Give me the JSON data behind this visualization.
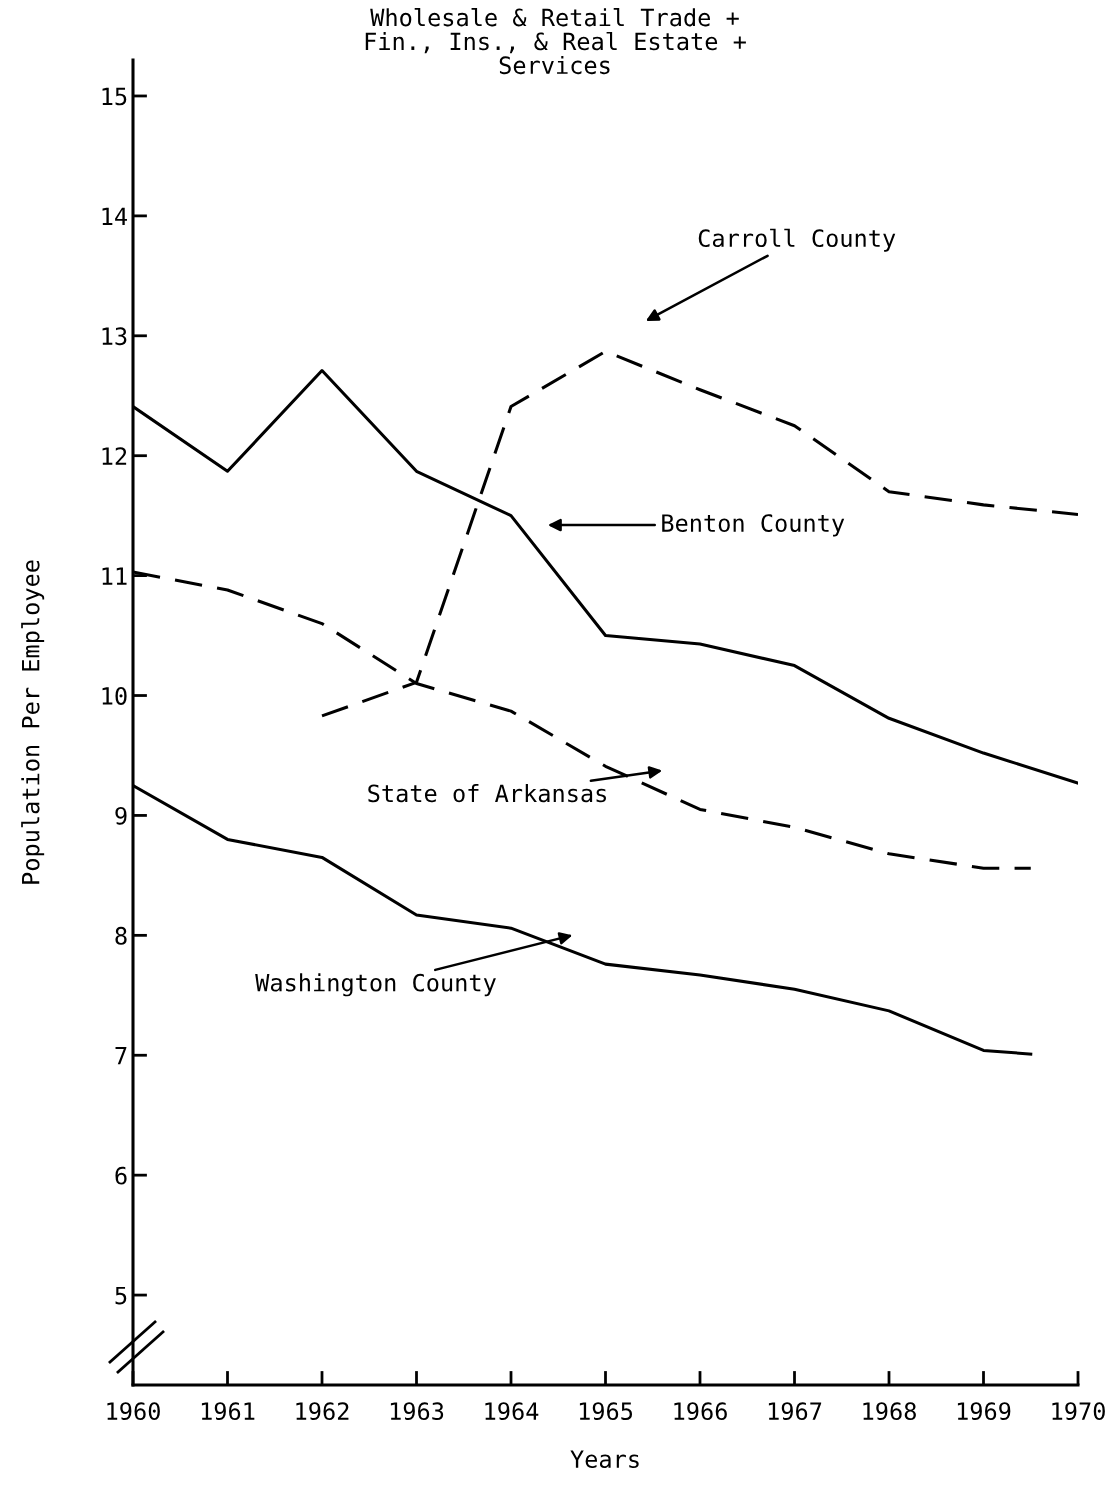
{
  "chart_data": {
    "type": "line",
    "title": "Wholesale & Retail Trade +\nFin., Ins., & Real Estate +\nServices",
    "xlabel": "Years",
    "ylabel": "Population Per Employee",
    "xlim": [
      1960,
      1970
    ],
    "xticks": [
      1960,
      1961,
      1962,
      1963,
      1964,
      1965,
      1966,
      1967,
      1968,
      1969,
      1970
    ],
    "ylim": [
      4.25,
      15.3
    ],
    "yticks": [
      5,
      6,
      7,
      8,
      9,
      10,
      11,
      12,
      13,
      14,
      15
    ],
    "grid": false,
    "legend": false,
    "marker": "none",
    "series": [
      {
        "color": "#000000",
        "line_style": "solid",
        "x": [
          1960,
          1961,
          1962,
          1963,
          1964,
          1965,
          1966,
          1967,
          1968,
          1969,
          1970
        ],
        "values": [
          12.41,
          11.87,
          12.71,
          11.87,
          11.5,
          10.5,
          10.43,
          10.25,
          9.81,
          9.52,
          9.27
        ]
      },
      {
        "color": "#000000",
        "line_style": "dashed",
        "x": [
          1962,
          1963,
          1964,
          1965,
          1966,
          1967,
          1968,
          1969,
          1970
        ],
        "values": [
          9.83,
          10.11,
          12.41,
          12.87,
          12.55,
          12.25,
          11.7,
          11.59,
          11.51
        ]
      },
      {
        "color": "#000000",
        "line_style": "dashed",
        "x": [
          1960,
          1961,
          1962,
          1963,
          1964,
          1965,
          1966,
          1967,
          1968,
          1969,
          1969.5
        ],
        "values": [
          11.03,
          10.88,
          10.6,
          10.1,
          9.87,
          9.41,
          9.05,
          8.9,
          8.68,
          8.56,
          8.56
        ]
      },
      {
        "color": "#000000",
        "line_style": "solid",
        "x": [
          1960,
          1961,
          1962,
          1963,
          1964,
          1965,
          1966,
          1967,
          1968,
          1969,
          1969.5
        ],
        "values": [
          9.25,
          8.8,
          8.65,
          8.17,
          8.06,
          7.76,
          7.67,
          7.55,
          7.37,
          7.04,
          7.01
        ]
      }
    ],
    "annotations": [
      "Carroll County",
      "Benton County",
      "State of Arkansas",
      "Washington County"
    ]
  }
}
